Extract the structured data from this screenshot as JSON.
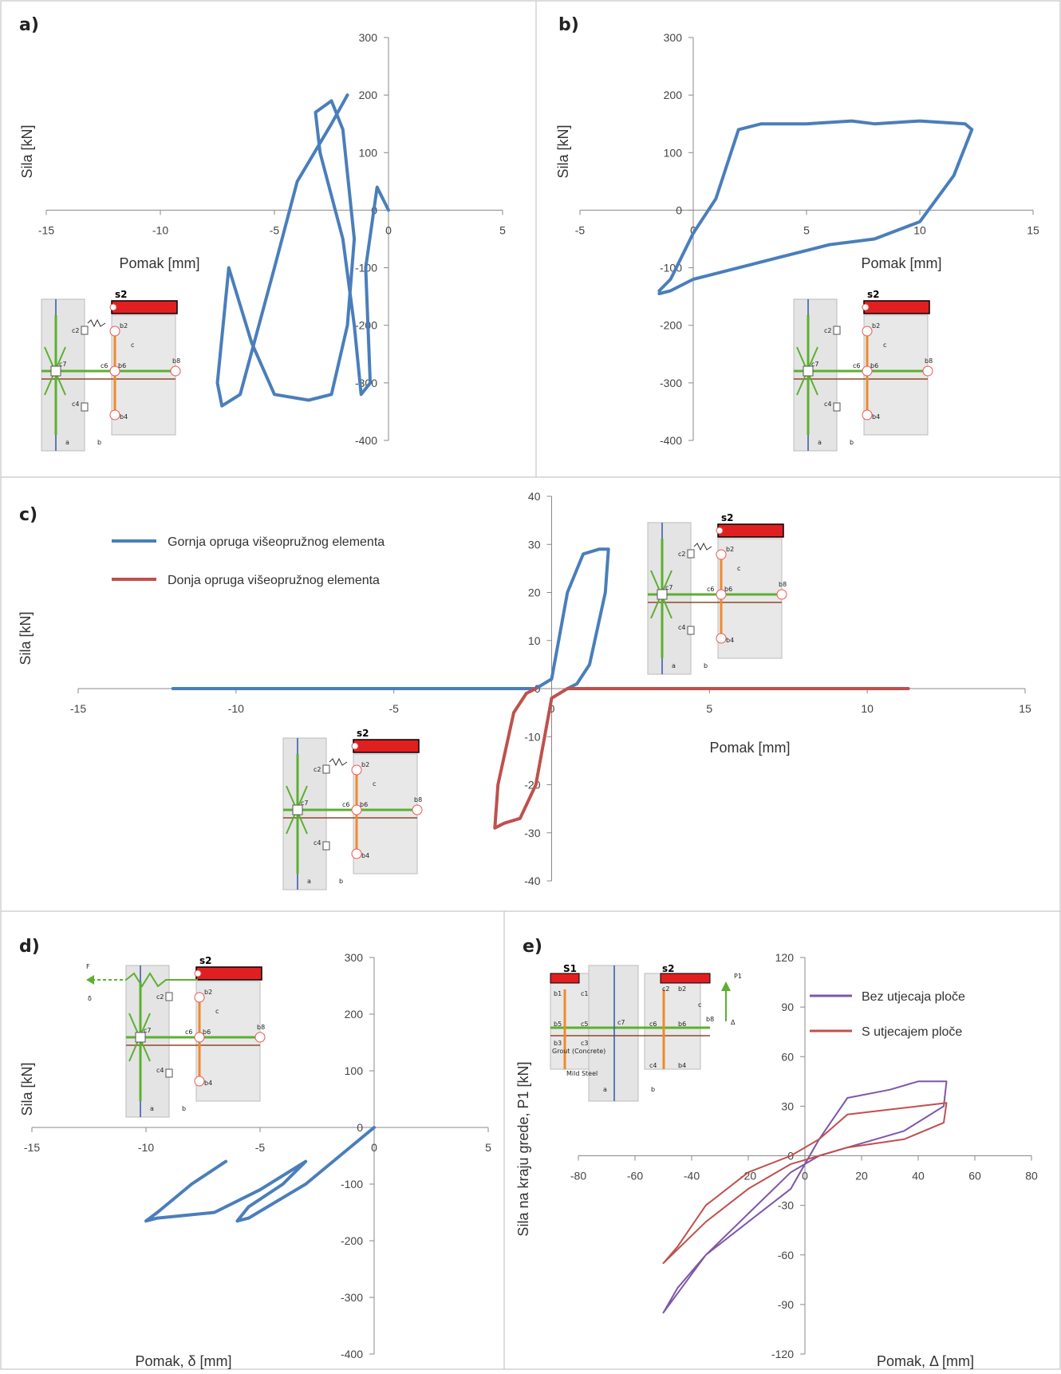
{
  "panels": [
    {
      "id": "a",
      "letter": "a)",
      "xlabel": "Pomak [mm]",
      "ylabel": "Sila [kN]",
      "xticks": [
        "-15",
        "-10",
        "-5",
        "0",
        "5"
      ],
      "yticks": [
        "300",
        "200",
        "100",
        "0",
        "-100",
        "-200",
        "-300",
        "-400"
      ],
      "mini": {
        "top": "s2",
        "nodes": [
          "c2",
          "b2",
          "c",
          "c7",
          "c6",
          "b6",
          "b8",
          "c4",
          "b4",
          "a",
          "b"
        ]
      }
    },
    {
      "id": "b",
      "letter": "b)",
      "xlabel": "Pomak [mm]",
      "ylabel": "Sila [kN]",
      "xticks": [
        "-5",
        "0",
        "5",
        "10",
        "15"
      ],
      "yticks": [
        "300",
        "200",
        "100",
        "0",
        "-100",
        "-200",
        "-300",
        "-400"
      ],
      "mini": {
        "top": "s2",
        "nodes": [
          "c2",
          "b2",
          "c",
          "c7",
          "c6",
          "b6",
          "b8",
          "c4",
          "b4",
          "a",
          "b"
        ]
      }
    },
    {
      "id": "c",
      "letter": "c)",
      "xlabel": "Pomak [mm]",
      "ylabel": "Sila [kN]",
      "xticks": [
        "-15",
        "-10",
        "-5",
        "0",
        "5",
        "10",
        "15"
      ],
      "yticks": [
        "40",
        "30",
        "20",
        "10",
        "0",
        "-10",
        "-20",
        "-30",
        "-40"
      ],
      "legend": [
        "Gornja opruga višeopružnog elementa",
        "Donja opruga višeopružnog elementa"
      ],
      "mini": {
        "top": "s2",
        "nodes": [
          "c2",
          "b2",
          "c",
          "c7",
          "c6",
          "b6",
          "b8",
          "c4",
          "b4",
          "a",
          "b"
        ]
      }
    },
    {
      "id": "d",
      "letter": "d)",
      "xlabel": "Pomak, δ [mm]",
      "ylabel": "Sila [kN]",
      "xticks": [
        "-15",
        "-10",
        "-5",
        "0",
        "5"
      ],
      "yticks": [
        "300",
        "200",
        "100",
        "0",
        "-100",
        "-200",
        "-300",
        "-400"
      ],
      "mini": {
        "top": "s2",
        "force": "F",
        "delta": "δ",
        "nodes": [
          "c2",
          "b2",
          "c",
          "c7",
          "c6",
          "b6",
          "b8",
          "c4",
          "b4",
          "a",
          "b"
        ]
      }
    },
    {
      "id": "e",
      "letter": "e)",
      "xlabel": "Pomak, Δ [mm]",
      "ylabel": "Sila na kraju grede, P1 [kN]",
      "xticks": [
        "-80",
        "-60",
        "-40",
        "-20",
        "0",
        "20",
        "40",
        "60",
        "80"
      ],
      "yticks": [
        "120",
        "90",
        "60",
        "30",
        "0",
        "-30",
        "-60",
        "-90",
        "-120"
      ],
      "legend": [
        "Bez utjecaja ploče",
        "S utjecajem ploče"
      ],
      "mini": {
        "top1": "S1",
        "top2": "s2",
        "load": "P1",
        "delta": "Δ",
        "grout": "Grout (Concrete)",
        "shim": "Mild Steel",
        "nodes": [
          "b1",
          "c1",
          "c2",
          "b2",
          "c",
          "b5",
          "c5",
          "c7",
          "c6",
          "b6",
          "b8",
          "b3",
          "c3",
          "c4",
          "b4",
          "a",
          "b"
        ]
      }
    }
  ],
  "chart_data": [
    {
      "type": "line",
      "panel": "a",
      "xlabel": "Pomak [mm]",
      "ylabel": "Sila [kN]",
      "xlim": [
        -15,
        5
      ],
      "ylim": [
        -400,
        300
      ],
      "series": [
        {
          "color": "#4a7ebb",
          "x": [
            0,
            -0.5,
            -1,
            -0.8,
            -1.2,
            -1.5,
            -2,
            -3,
            -3.2,
            -2.5,
            -2,
            -1.5,
            -1.8,
            -2.5,
            -3.5,
            -5,
            -6,
            -7,
            -7.5,
            -7.3,
            -6.5,
            -5,
            -4,
            -2.5,
            -1.8
          ],
          "y": [
            0,
            40,
            -100,
            -300,
            -320,
            -200,
            -50,
            100,
            170,
            190,
            140,
            -50,
            -200,
            -320,
            -330,
            -320,
            -230,
            -100,
            -300,
            -340,
            -320,
            -100,
            50,
            150,
            200
          ]
        }
      ]
    },
    {
      "type": "line",
      "panel": "b",
      "xlabel": "Pomak [mm]",
      "ylabel": "Sila [kN]",
      "xlim": [
        -5,
        15
      ],
      "ylim": [
        -400,
        300
      ],
      "series": [
        {
          "color": "#4a7ebb",
          "x": [
            -1.5,
            -1,
            0,
            1,
            2,
            3,
            5,
            7,
            8,
            10,
            12,
            12.3,
            11.5,
            10,
            8,
            6,
            4,
            2,
            0,
            -1,
            -1.5
          ],
          "y": [
            -140,
            -120,
            -40,
            20,
            140,
            150,
            150,
            155,
            150,
            155,
            150,
            140,
            60,
            -20,
            -50,
            -60,
            -80,
            -100,
            -120,
            -140,
            -145
          ]
        }
      ]
    },
    {
      "type": "line",
      "panel": "c",
      "xlabel": "Pomak [mm]",
      "ylabel": "Sila [kN]",
      "xlim": [
        -15,
        15
      ],
      "ylim": [
        -40,
        40
      ],
      "series": [
        {
          "name": "Gornja opruga višeopružnog elementa",
          "color": "#4a7ebb",
          "x": [
            -12,
            -0.5,
            0,
            0.5,
            1,
            1.5,
            1.8,
            1.7,
            1.2,
            0.8,
            0.5
          ],
          "y": [
            0,
            0,
            2,
            20,
            28,
            29,
            29,
            20,
            5,
            1,
            0
          ]
        },
        {
          "name": "Donja opruga višeopružnog elementa",
          "color": "#c0504d",
          "x": [
            11.3,
            0.5,
            0,
            -0.5,
            -1,
            -1.5,
            -1.8,
            -1.7,
            -1.2,
            -0.8,
            -0.5
          ],
          "y": [
            0,
            0,
            -2,
            -20,
            -27,
            -28,
            -29,
            -20,
            -5,
            -1,
            0
          ]
        }
      ]
    },
    {
      "type": "line",
      "panel": "d",
      "xlabel": "Pomak, δ [mm]",
      "ylabel": "Sila [kN]",
      "xlim": [
        -15,
        5
      ],
      "ylim": [
        -400,
        300
      ],
      "series": [
        {
          "color": "#4a7ebb",
          "x": [
            0,
            -3,
            -5.5,
            -6,
            -5.5,
            -4,
            -3,
            -5,
            -7,
            -9.5,
            -10,
            -9.5,
            -8,
            -6.5
          ],
          "y": [
            0,
            -100,
            -160,
            -165,
            -140,
            -100,
            -60,
            -110,
            -150,
            -160,
            -165,
            -150,
            -100,
            -60
          ]
        }
      ]
    },
    {
      "type": "line",
      "panel": "e",
      "xlabel": "Pomak, Δ [mm]",
      "ylabel": "Sila na kraju grede, P1 [kN]",
      "xlim": [
        -80,
        80
      ],
      "ylim": [
        -120,
        120
      ],
      "series": [
        {
          "name": "Bez utjecaja ploče",
          "color": "#7e57a8",
          "x": [
            -50,
            -45,
            -35,
            -20,
            -5,
            5,
            15,
            30,
            40,
            50,
            49,
            35,
            15,
            5,
            -5,
            -20,
            -35,
            -50
          ],
          "y": [
            -95,
            -80,
            -60,
            -40,
            -20,
            10,
            35,
            40,
            45,
            45,
            30,
            15,
            5,
            0,
            -10,
            -35,
            -60,
            -95
          ]
        },
        {
          "name": "S utjecajem ploče",
          "color": "#c0504d",
          "x": [
            -50,
            -45,
            -35,
            -20,
            -5,
            5,
            15,
            30,
            40,
            50,
            49,
            35,
            15,
            5,
            -5,
            -20,
            -35,
            -50
          ],
          "y": [
            -65,
            -55,
            -30,
            -10,
            0,
            10,
            25,
            28,
            30,
            32,
            20,
            10,
            5,
            0,
            -5,
            -20,
            -40,
            -65
          ]
        }
      ]
    }
  ]
}
